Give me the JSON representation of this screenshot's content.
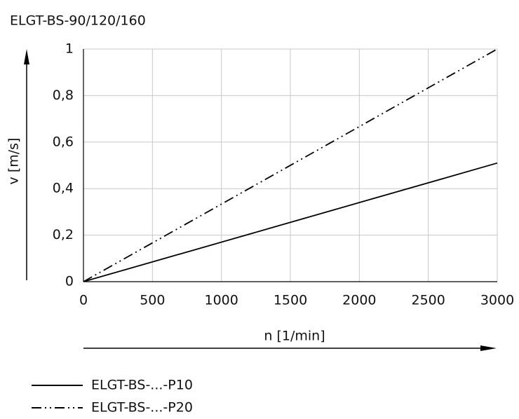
{
  "chart_data": {
    "type": "line",
    "title": "ELGT-BS-90/120/160",
    "x_label": "n [1/min]",
    "y_label": "v [m/s]",
    "x": [
      0,
      3000
    ],
    "series": [
      {
        "name": "ELGT-BS-...-P10",
        "color": "#000000",
        "dash": "solid",
        "values": [
          0,
          0.51
        ]
      },
      {
        "name": "ELGT-BS-...-P20",
        "color": "#000000",
        "dash": "dash-dot-dot",
        "values": [
          0,
          1
        ]
      }
    ],
    "xlim": [
      0,
      3000
    ],
    "xticks": [
      0,
      500,
      1000,
      1500,
      2000,
      2500,
      3000
    ],
    "ylim": [
      0,
      1
    ],
    "yticks": [
      0,
      {
        "value": 0.2,
        "label": "0,2"
      },
      {
        "value": 0.4,
        "label": "0,4"
      },
      {
        "value": 0.6,
        "label": "0,6"
      },
      {
        "value": 0.8,
        "label": "0,8"
      },
      1
    ],
    "grid": true,
    "legend": "bottom"
  }
}
